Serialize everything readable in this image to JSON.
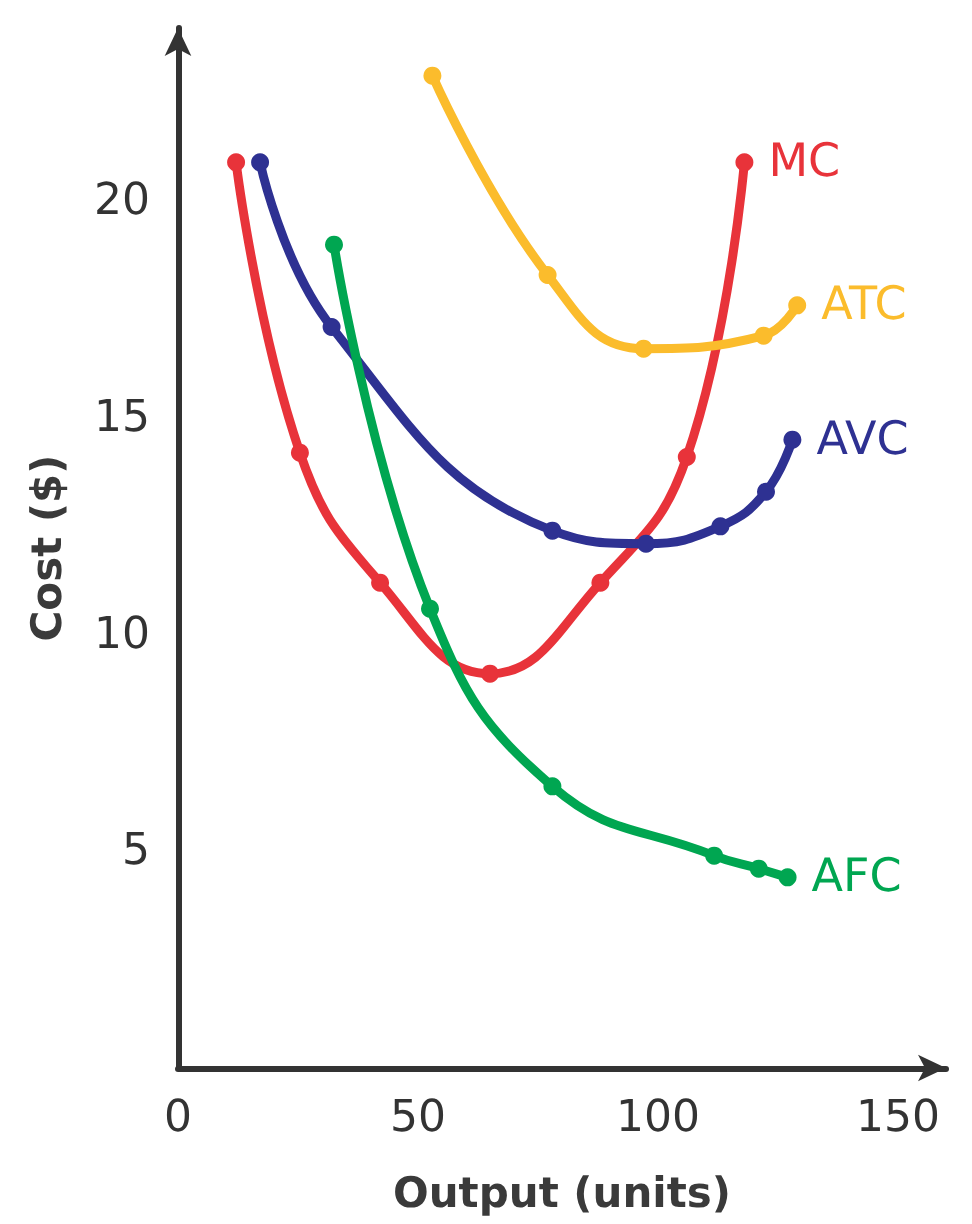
{
  "chart_data": {
    "type": "line",
    "xlabel": "Output (units)",
    "ylabel": "Cost ($)",
    "xlim": [
      0,
      160
    ],
    "ylim": [
      0,
      24
    ],
    "xticks": [
      0,
      50,
      100,
      150
    ],
    "yticks": [
      5,
      10,
      15,
      20
    ],
    "grid": false,
    "legend": false,
    "marker": "circle",
    "line_style": "solid",
    "series": [
      {
        "name": "MC",
        "color": "#e8333a",
        "x": [
          12.1,
          25.4,
          42.1,
          65,
          88,
          106,
          118
        ],
        "values": [
          20.9,
          14.2,
          11.2,
          9.1,
          11.2,
          14.1,
          20.9
        ]
      },
      {
        "name": "ATC",
        "color": "#fbbc2c",
        "x": [
          53,
          77,
          97,
          122,
          129
        ],
        "values": [
          22.9,
          18.3,
          16.6,
          16.9,
          17.6
        ]
      },
      {
        "name": "AVC",
        "color": "#2e3192",
        "x": [
          17.1,
          32,
          78,
          97.5,
          113,
          122.5,
          128
        ],
        "values": [
          20.9,
          17.1,
          12.4,
          12.1,
          12.5,
          13.3,
          14.5
        ]
      },
      {
        "name": "AFC",
        "color": "#00a651",
        "x": [
          32.5,
          52.5,
          78,
          111.7,
          121,
          127
        ],
        "values": [
          19.0,
          10.6,
          6.5,
          4.9,
          4.6,
          4.4
        ]
      }
    ]
  }
}
